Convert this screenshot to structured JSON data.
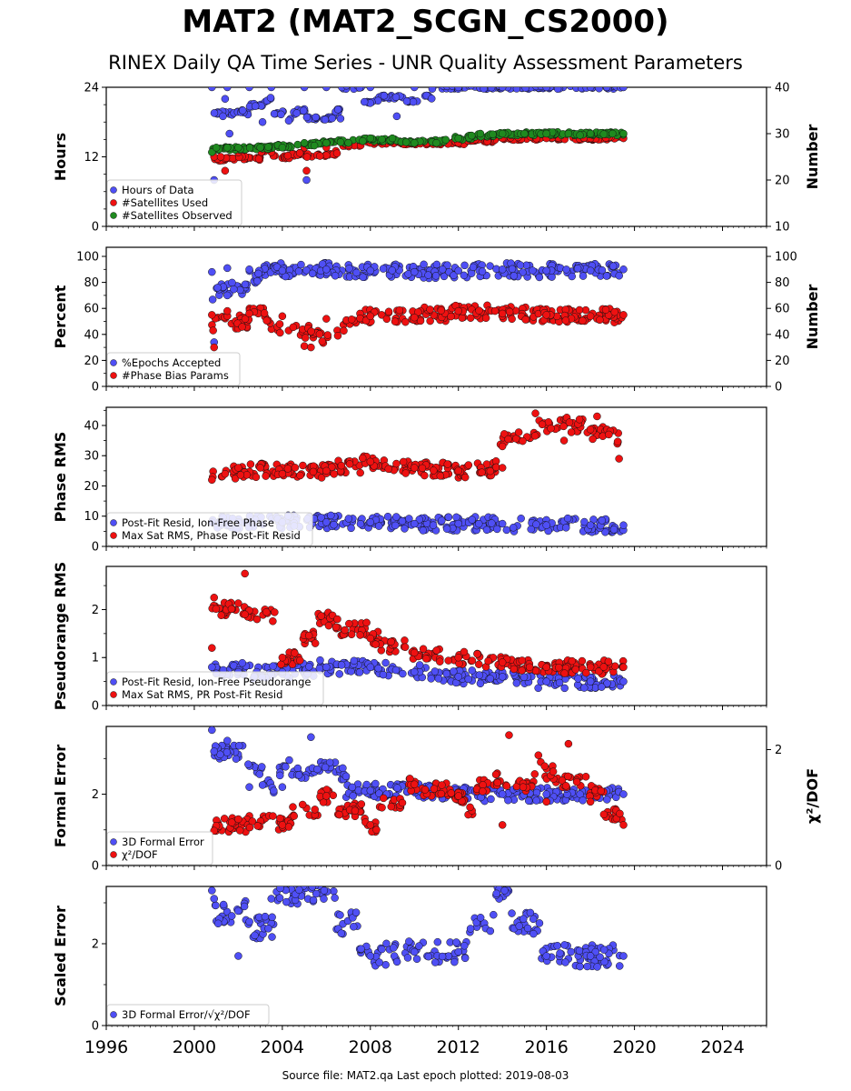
{
  "header": {
    "title": "MAT2 (MAT2_SCGN_CS2000)",
    "subtitle": "RINEX Daily QA Time Series - UNR Quality Assessment Parameters"
  },
  "footer": {
    "text": "Source file: MAT2.qa Last epoch plotted: 2019-08-03"
  },
  "colors": {
    "blue": "#4f4ff5",
    "red": "#ee1111",
    "green": "#1f8a1f",
    "edge": "#111111"
  },
  "chart_data": [
    {
      "type": "scatter",
      "ylabel": "Hours",
      "y2label": "Number",
      "xlim": [
        1996,
        2026
      ],
      "ylim": [
        0,
        24
      ],
      "yticks": [
        0,
        12,
        24
      ],
      "y2lim": [
        10,
        40
      ],
      "y2ticks": [
        10,
        20,
        30,
        40
      ],
      "legend_position": "lower-left",
      "series": [
        {
          "name": "Hours of Data",
          "color": "blue",
          "axis": "left",
          "x": [
            2000.8,
            2001.5,
            2002.5,
            2003.5,
            2005.0,
            2006.0,
            2008.0,
            2010.0,
            2012.0,
            2014.0,
            2016.0,
            2018.0,
            2019.5,
            2000.9,
            2001.3,
            2001.6,
            2002.2,
            2003.1,
            2005.1,
            2009.2,
            2001.4
          ],
          "y": [
            24,
            24,
            24,
            24,
            24,
            24,
            24,
            24,
            24,
            24,
            24,
            24,
            24,
            8,
            19,
            16,
            20,
            18,
            8,
            19,
            22
          ]
        },
        {
          "name": "#Satellites Used",
          "color": "red",
          "axis": "right",
          "x": [
            2000.9,
            2001.2,
            2002.0,
            2003.5,
            2005.0,
            2006.0,
            2008.0,
            2010.0,
            2012.0,
            2014.0,
            2016.0,
            2018.0,
            2019.5,
            2001.4,
            2005.1
          ],
          "y": [
            25,
            25,
            26,
            26,
            27,
            27,
            28,
            28,
            28,
            29,
            29,
            29,
            29,
            22,
            22
          ]
        },
        {
          "name": "#Satellites Observed",
          "color": "green",
          "axis": "right",
          "x": [
            2000.8,
            2001.0,
            2001.5,
            2002.0,
            2003.0,
            2004.0,
            2005.0,
            2006.0,
            2007.0,
            2008.0,
            2009.0,
            2010.0,
            2011.0,
            2012.0,
            2013.0,
            2014.0,
            2015.0,
            2016.0,
            2017.0,
            2018.0,
            2019.0,
            2019.5
          ],
          "y": [
            26,
            27,
            27,
            27,
            27,
            27,
            28,
            28,
            28,
            29,
            29,
            28,
            28,
            29,
            30,
            30,
            30,
            30,
            30,
            30,
            30,
            30
          ]
        }
      ]
    },
    {
      "type": "scatter",
      "ylabel": "Percent",
      "y2label": "Number",
      "xlim": [
        1996,
        2026
      ],
      "ylim": [
        0,
        107
      ],
      "yticks": [
        0,
        20,
        40,
        60,
        80,
        100
      ],
      "y2lim": [
        0,
        107
      ],
      "y2ticks": [
        0,
        20,
        40,
        60,
        80,
        100
      ],
      "legend_position": "lower-left",
      "series": [
        {
          "name": "%Epochs Accepted",
          "color": "blue",
          "axis": "left",
          "x": [
            2000.8,
            2001.5,
            2002.5,
            2004.0,
            2006.0,
            2008.0,
            2010.0,
            2012.0,
            2014.0,
            2016.0,
            2018.0,
            2019.5,
            2000.9,
            2001.5
          ],
          "y": [
            88,
            91,
            90,
            89,
            90,
            89,
            88,
            89,
            90,
            89,
            89,
            90,
            34,
            70
          ]
        },
        {
          "name": "#Phase Bias Params",
          "color": "red",
          "axis": "right",
          "x": [
            2000.8,
            2001.5,
            2002.5,
            2004.0,
            2006.0,
            2008.0,
            2010.0,
            2012.0,
            2014.0,
            2016.0,
            2018.0,
            2019.5,
            2005.0,
            2005.3,
            2000.9
          ],
          "y": [
            55,
            58,
            56,
            54,
            52,
            54,
            53,
            58,
            56,
            55,
            54,
            55,
            31,
            30,
            30
          ]
        }
      ]
    },
    {
      "type": "scatter",
      "ylabel": "Phase RMS",
      "xlim": [
        1996,
        2026
      ],
      "ylim": [
        0,
        46
      ],
      "yticks": [
        0,
        10,
        20,
        30,
        40
      ],
      "legend_position": "lower-left",
      "series": [
        {
          "name": "Post-Fit Resid, Ion-Free Phase",
          "color": "blue",
          "axis": "left",
          "x": [
            2000.8,
            2002.0,
            2004.0,
            2006.0,
            2008.0,
            2010.0,
            2012.0,
            2014.0,
            2016.0,
            2018.0,
            2019.5
          ],
          "y": [
            8,
            8,
            8,
            8,
            8,
            7.5,
            7.5,
            7.5,
            7,
            7,
            7
          ]
        },
        {
          "name": "Max Sat RMS, Phase Post-Fit Resid",
          "color": "red",
          "axis": "left",
          "x": [
            2000.8,
            2001.4,
            2002.0,
            2003.0,
            2004.0,
            2006.0,
            2008.0,
            2010.0,
            2012.0,
            2014.0,
            2015.5,
            2016.2,
            2016.8,
            2017.5,
            2018.3,
            2019.3
          ],
          "y": [
            22,
            24,
            26,
            26,
            24,
            25,
            28,
            26,
            25,
            26,
            44,
            39,
            35,
            42,
            43,
            29
          ]
        }
      ]
    },
    {
      "type": "scatter",
      "ylabel": "Pseudorange RMS",
      "xlim": [
        1996,
        2026
      ],
      "ylim": [
        0,
        2.9
      ],
      "yticks": [
        0,
        1,
        2
      ],
      "legend_position": "lower-left",
      "series": [
        {
          "name": "Post-Fit Resid, Ion-Free Pseudorange",
          "color": "blue",
          "axis": "left",
          "x": [
            2000.8,
            2002.0,
            2004.0,
            2006.0,
            2008.0,
            2010.0,
            2012.0,
            2014.0,
            2016.0,
            2018.0,
            2019.5
          ],
          "y": [
            0.8,
            0.7,
            0.7,
            0.8,
            0.8,
            0.7,
            0.6,
            0.6,
            0.5,
            0.5,
            0.5
          ]
        },
        {
          "name": "Max Sat RMS, PR Post-Fit Resid",
          "color": "red",
          "axis": "left",
          "x": [
            2000.8,
            2000.9,
            2002.3,
            2002.3,
            2004.0,
            2006.5,
            2008.0,
            2010.0,
            2012.0,
            2014.0,
            2016.0,
            2018.0,
            2019.5
          ],
          "y": [
            1.2,
            2.25,
            2.75,
            1.9,
            1.0,
            1.8,
            1.4,
            1.1,
            1.0,
            0.9,
            0.8,
            0.8,
            0.8
          ]
        }
      ]
    },
    {
      "type": "scatter",
      "ylabel": "Formal Error",
      "y2label": "χ²/DOF",
      "xlim": [
        1996,
        2026
      ],
      "ylim": [
        0,
        3.9
      ],
      "yticks": [
        0,
        2
      ],
      "y2lim": [
        0,
        2.4
      ],
      "y2ticks": [
        0,
        2
      ],
      "legend_position": "lower-left",
      "series": [
        {
          "name": "3D Formal Error",
          "color": "blue",
          "axis": "left",
          "x": [
            2000.8,
            2000.9,
            2001.5,
            2002.5,
            2004.0,
            2005.3,
            2006.0,
            2008.0,
            2010.0,
            2012.0,
            2014.0,
            2016.0,
            2018.0,
            2019.5
          ],
          "y": [
            3.8,
            3.2,
            3.5,
            2.2,
            2.2,
            3.6,
            2.1,
            2.1,
            2.1,
            2.0,
            2.0,
            2.0,
            2.0,
            2.0
          ]
        },
        {
          "name": "χ²/DOF",
          "color": "red",
          "axis": "right",
          "x": [
            2000.9,
            2002.0,
            2004.0,
            2006.0,
            2008.0,
            2010.0,
            2012.0,
            2014.0,
            2014.3,
            2016.0,
            2017.0,
            2018.0,
            2019.5
          ],
          "y": [
            0.6,
            0.8,
            0.7,
            1.2,
            0.7,
            1.4,
            1.2,
            0.7,
            2.25,
            1.1,
            2.1,
            1.1,
            0.7
          ]
        }
      ]
    },
    {
      "type": "scatter",
      "ylabel": "Scaled Error",
      "xlim": [
        1996,
        2026
      ],
      "xticks": [
        1996,
        2000,
        2004,
        2008,
        2012,
        2016,
        2020,
        2024
      ],
      "ylim": [
        0,
        3.4
      ],
      "yticks": [
        0,
        2
      ],
      "legend_position": "lower-left",
      "series": [
        {
          "name": "3D Formal Error/√χ²/DOF",
          "color": "blue",
          "axis": "left",
          "x": [
            2000.8,
            2000.9,
            2002.0,
            2003.5,
            2005.9,
            2008.0,
            2010.0,
            2012.0,
            2014.1,
            2016.0,
            2018.0,
            2019.5
          ],
          "y": [
            3.3,
            3.1,
            1.7,
            3.1,
            3.3,
            1.7,
            1.8,
            1.8,
            3.3,
            1.7,
            1.7,
            1.7
          ]
        }
      ]
    }
  ]
}
